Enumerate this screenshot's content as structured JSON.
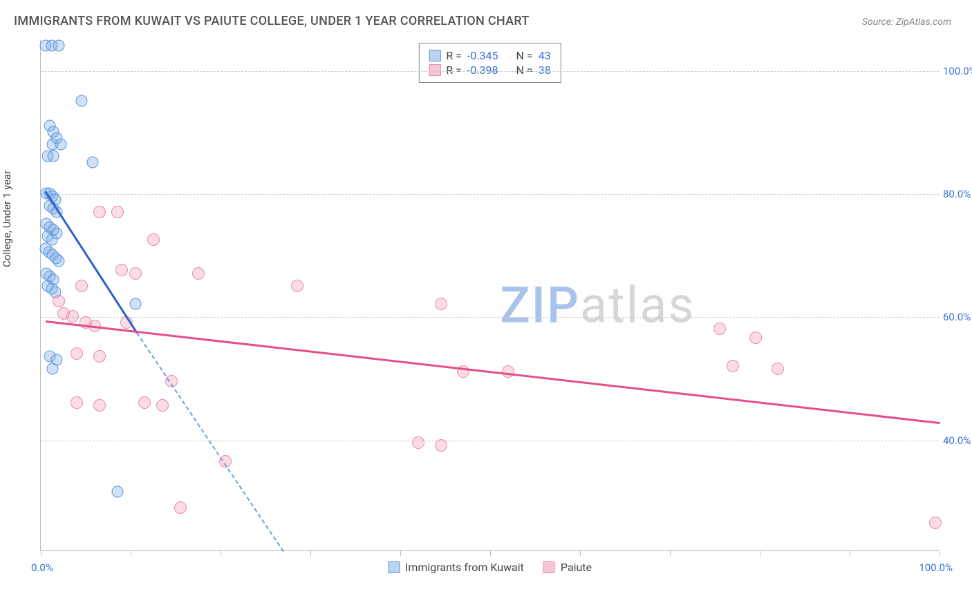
{
  "title": "IMMIGRANTS FROM KUWAIT VS PAIUTE COLLEGE, UNDER 1 YEAR CORRELATION CHART",
  "source": "Source: ZipAtlas.com",
  "ylabel": "College, Under 1 year",
  "chart": {
    "type": "scatter",
    "xlim": [
      0,
      100
    ],
    "ylim": [
      22,
      105
    ],
    "yticks": [
      40,
      60,
      80,
      100
    ],
    "ytick_labels": [
      "40.0%",
      "60.0%",
      "80.0%",
      "100.0%"
    ],
    "xticks": [
      0,
      10,
      20,
      30,
      40,
      50,
      60,
      70,
      80,
      90,
      100
    ],
    "xtick_label_left": "0.0%",
    "xtick_label_right": "100.0%",
    "background_color": "#ffffff",
    "grid_color": "#cccccc",
    "grid_style": "dashed",
    "marker_size": 17,
    "marker_opacity": 0.35,
    "series": [
      {
        "name": "Immigrants from Kuwait",
        "color_fill": "#78aae6",
        "color_stroke": "#5b95dc",
        "reg_color": "#2a62c9",
        "reg_line": {
          "x1": 0.5,
          "y1": 80.5,
          "x2": 10.7,
          "y2": 57.5
        },
        "reg_dash": {
          "x1": 10.7,
          "y1": 57.5,
          "x2": 27,
          "y2": 22
        },
        "R": "-0.345",
        "N": "43",
        "points": [
          [
            0.5,
            104
          ],
          [
            1.2,
            104
          ],
          [
            2.0,
            104
          ],
          [
            4.5,
            95
          ],
          [
            1.0,
            91
          ],
          [
            1.4,
            90
          ],
          [
            1.8,
            89
          ],
          [
            1.3,
            88
          ],
          [
            2.2,
            88
          ],
          [
            0.8,
            86
          ],
          [
            1.4,
            86
          ],
          [
            5.8,
            85
          ],
          [
            0.6,
            80
          ],
          [
            1.0,
            80
          ],
          [
            1.3,
            79.5
          ],
          [
            1.6,
            79
          ],
          [
            1.0,
            78
          ],
          [
            1.4,
            77.5
          ],
          [
            1.8,
            77
          ],
          [
            0.6,
            75
          ],
          [
            1.0,
            74.5
          ],
          [
            1.4,
            74
          ],
          [
            1.8,
            73.5
          ],
          [
            0.8,
            73
          ],
          [
            1.2,
            72.5
          ],
          [
            0.5,
            71
          ],
          [
            0.9,
            70.5
          ],
          [
            1.3,
            70
          ],
          [
            1.7,
            69.5
          ],
          [
            2.0,
            69
          ],
          [
            0.6,
            67
          ],
          [
            1.0,
            66.5
          ],
          [
            1.4,
            66
          ],
          [
            0.8,
            65
          ],
          [
            1.2,
            64.5
          ],
          [
            1.6,
            64
          ],
          [
            10.5,
            62
          ],
          [
            1.0,
            53.5
          ],
          [
            1.8,
            53
          ],
          [
            1.3,
            51.5
          ],
          [
            8.5,
            31.5
          ]
        ]
      },
      {
        "name": "Paiute",
        "color_fill": "#f08caa",
        "color_stroke": "#e98bab",
        "reg_color": "#e54e8a",
        "reg_line": {
          "x1": 0.5,
          "y1": 59.5,
          "x2": 100,
          "y2": 43
        },
        "R": "-0.398",
        "N": "38",
        "points": [
          [
            6.5,
            77
          ],
          [
            8.5,
            77
          ],
          [
            12.5,
            72.5
          ],
          [
            9.0,
            67.5
          ],
          [
            10.5,
            67
          ],
          [
            17.5,
            67
          ],
          [
            4.5,
            65
          ],
          [
            28.5,
            65
          ],
          [
            2.0,
            62.5
          ],
          [
            44.5,
            62
          ],
          [
            2.5,
            60.5
          ],
          [
            3.5,
            60
          ],
          [
            5.0,
            59
          ],
          [
            6.0,
            58.5
          ],
          [
            9.5,
            59
          ],
          [
            75.5,
            58
          ],
          [
            79.5,
            56.5
          ],
          [
            4.0,
            54
          ],
          [
            6.5,
            53.5
          ],
          [
            77.0,
            52
          ],
          [
            82.0,
            51.5
          ],
          [
            47.0,
            51
          ],
          [
            52.0,
            51
          ],
          [
            14.5,
            49.5
          ],
          [
            4.0,
            46
          ],
          [
            6.5,
            45.5
          ],
          [
            11.5,
            46
          ],
          [
            13.5,
            45.5
          ],
          [
            42.0,
            39.5
          ],
          [
            44.5,
            39
          ],
          [
            20.5,
            36.5
          ],
          [
            15.5,
            29
          ],
          [
            99.5,
            26.5
          ]
        ]
      }
    ]
  },
  "legend": {
    "r_label": "R =",
    "n_label": "N ="
  },
  "watermark": {
    "z": "ZIP",
    "rest": "atlas"
  }
}
